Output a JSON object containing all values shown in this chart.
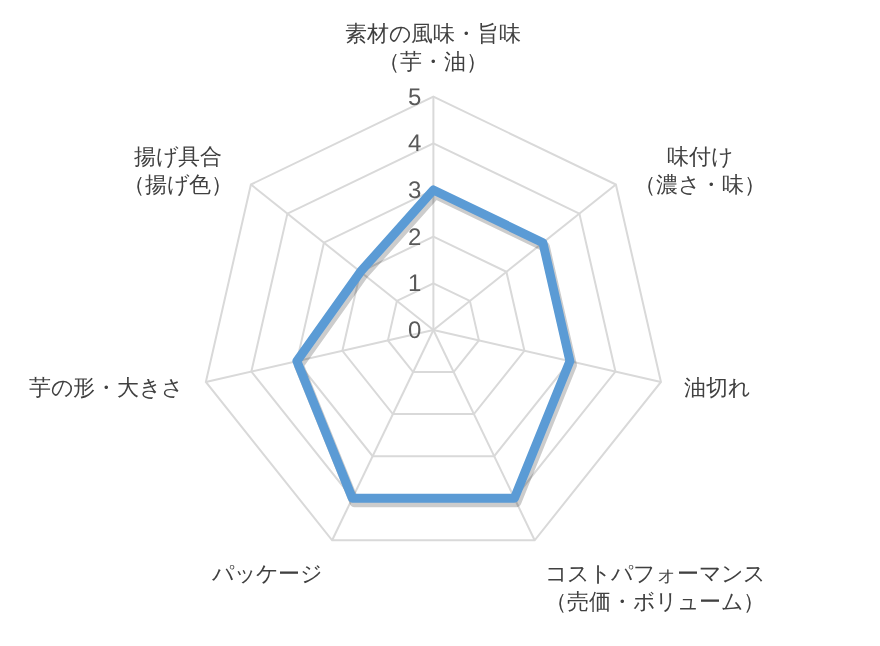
{
  "chart_data": {
    "type": "radar",
    "categories": [
      "素材の風味・旨味（芋・油）",
      "味付け（濃さ・味）",
      "油切れ",
      "コストパフォーマンス（売価・ボリューム）",
      "パッケージ",
      "芋の形・大きさ",
      "揚げ具合（揚げ色）"
    ],
    "series": [
      {
        "color": "#5b9bd5",
        "values": [
          3,
          3,
          3,
          4,
          4,
          3,
          2
        ]
      }
    ],
    "ylim": [
      0,
      5
    ],
    "yticks": [
      0,
      1,
      2,
      3,
      4,
      5
    ],
    "grid": true
  }
}
